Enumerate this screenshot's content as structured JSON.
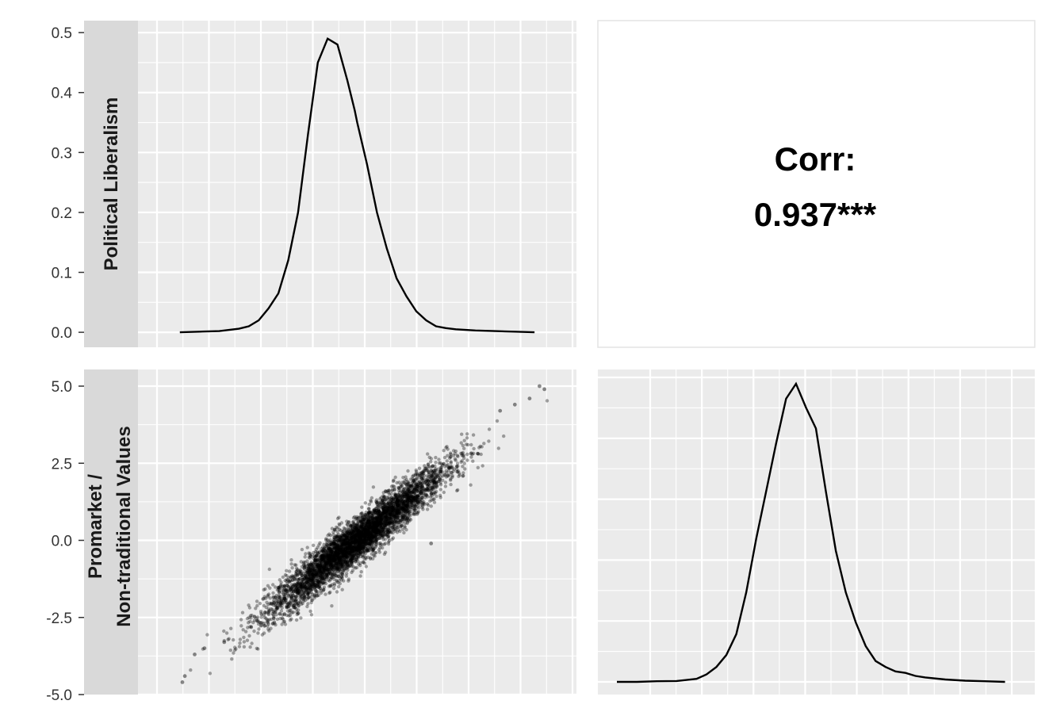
{
  "chart_data": {
    "type": "scatter",
    "title": "",
    "variables": [
      "Political Liberalism",
      "Promarket / Non-traditional Values"
    ],
    "strip_labels": {
      "row1": [
        "Political Liberalism"
      ],
      "row2": [
        "Promarket /",
        "Non-traditional Values"
      ]
    },
    "panels": {
      "density_political_liberalism": {
        "type": "line",
        "y_ticks": [
          "0.0",
          "0.1",
          "0.2",
          "0.3",
          "0.4",
          "0.5"
        ],
        "y_tick_values": [
          0.0,
          0.1,
          0.2,
          0.3,
          0.4,
          0.5
        ],
        "ylim": [
          -0.025,
          0.52
        ],
        "xlim": [
          -4.0,
          4.0
        ],
        "x": [
          -3.6,
          -3.2,
          -2.8,
          -2.4,
          -2.2,
          -2.0,
          -1.8,
          -1.6,
          -1.4,
          -1.2,
          -1.0,
          -0.8,
          -0.6,
          -0.4,
          -0.2,
          -0.05,
          0.0,
          0.2,
          0.4,
          0.6,
          0.8,
          1.0,
          1.2,
          1.4,
          1.6,
          1.8,
          2.0,
          2.2,
          2.4,
          2.8,
          3.2,
          3.6
        ],
        "y": [
          0.0,
          0.001,
          0.002,
          0.006,
          0.01,
          0.02,
          0.04,
          0.065,
          0.12,
          0.2,
          0.33,
          0.45,
          0.49,
          0.48,
          0.42,
          0.37,
          0.35,
          0.28,
          0.2,
          0.14,
          0.09,
          0.06,
          0.035,
          0.02,
          0.01,
          0.007,
          0.005,
          0.004,
          0.003,
          0.002,
          0.001,
          0.0
        ]
      },
      "correlation": {
        "label": "Corr:",
        "value": "0.937***"
      },
      "scatter": {
        "type": "scatter",
        "y_ticks": [
          "-5.0",
          "-2.5",
          "0.0",
          "2.5",
          "5.0"
        ],
        "y_tick_values": [
          -5.0,
          -2.5,
          0.0,
          2.5,
          5.0
        ],
        "ylim": [
          -5.0,
          5.0
        ],
        "xlim": [
          -4.0,
          4.0
        ],
        "point_color": "#000000",
        "point_opacity": 0.35,
        "x_mean": 0.0,
        "y_mean": 0.0,
        "correlation": 0.937,
        "n_points": 4500,
        "outliers": [
          {
            "x": -3.3,
            "y": -3.7
          },
          {
            "x": -3.1,
            "y": -3.5
          },
          {
            "x": -3.5,
            "y": -4.4
          },
          {
            "x": -3.55,
            "y": -4.6
          },
          {
            "x": -2.7,
            "y": -3.3
          },
          {
            "x": 3.8,
            "y": 4.9
          },
          {
            "x": 3.7,
            "y": 5.0
          },
          {
            "x": 3.5,
            "y": 4.6
          },
          {
            "x": 3.2,
            "y": 4.4
          },
          {
            "x": 2.9,
            "y": 4.2
          },
          {
            "x": 1.5,
            "y": -0.1
          },
          {
            "x": -1.9,
            "y": -2.7
          }
        ]
      },
      "density_promarket": {
        "type": "line",
        "xlim": [
          -4.0,
          4.0
        ],
        "x": [
          -4.0,
          -3.6,
          -3.2,
          -2.8,
          -2.4,
          -2.2,
          -2.0,
          -1.8,
          -1.6,
          -1.4,
          -1.2,
          -1.0,
          -0.8,
          -0.6,
          -0.4,
          -0.2,
          0.0,
          0.2,
          0.4,
          0.6,
          0.8,
          1.0,
          1.2,
          1.4,
          1.6,
          1.8,
          2.0,
          2.2,
          2.6,
          3.0,
          3.4,
          3.8
        ],
        "y": [
          0.0,
          0.0,
          0.002,
          0.003,
          0.01,
          0.025,
          0.05,
          0.09,
          0.16,
          0.3,
          0.48,
          0.64,
          0.8,
          0.95,
          1.0,
          0.92,
          0.85,
          0.64,
          0.44,
          0.3,
          0.2,
          0.12,
          0.07,
          0.05,
          0.035,
          0.03,
          0.02,
          0.015,
          0.008,
          0.004,
          0.002,
          0.0
        ]
      }
    },
    "grid": true,
    "legend": "none"
  }
}
